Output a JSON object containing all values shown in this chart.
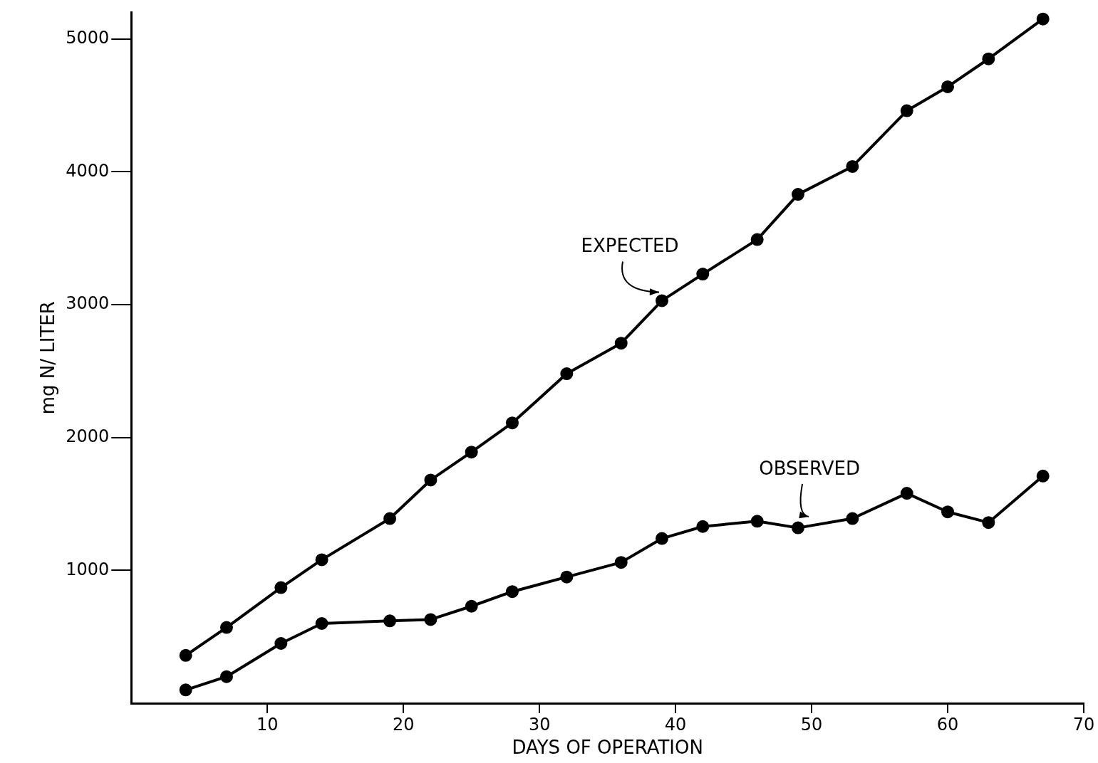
{
  "chart_data": {
    "type": "line",
    "xlabel": "DAYS OF OPERATION",
    "ylabel": "mg N/ LITER",
    "xlim": [
      0,
      70
    ],
    "ylim": [
      0,
      5200
    ],
    "xticks": [
      10,
      20,
      30,
      40,
      50,
      60,
      70
    ],
    "yticks": [
      1000,
      2000,
      3000,
      4000,
      5000
    ],
    "grid": false,
    "legend": false,
    "marker": "circle",
    "line_style": "solid",
    "series": [
      {
        "color": "#000000",
        "x": [
          4,
          7,
          11,
          14,
          19,
          22,
          25,
          28,
          32,
          36,
          39,
          42,
          46,
          49,
          53,
          57,
          60,
          63,
          67
        ],
        "values": [
          360,
          570,
          870,
          1080,
          1390,
          1680,
          1890,
          2110,
          2480,
          2710,
          3030,
          3230,
          3490,
          3830,
          4040,
          4460,
          4640,
          4850,
          5150
        ]
      },
      {
        "color": "#000000",
        "x": [
          4,
          7,
          11,
          14,
          19,
          22,
          25,
          28,
          32,
          36,
          39,
          42,
          46,
          49,
          53,
          57,
          60,
          63,
          67
        ],
        "values": [
          100,
          200,
          450,
          600,
          620,
          630,
          730,
          840,
          950,
          1060,
          1240,
          1330,
          1370,
          1320,
          1390,
          1580,
          1440,
          1360,
          1710
        ]
      }
    ],
    "annotations": [
      {
        "text": "EXPECTED",
        "x": 39,
        "y": 3030
      },
      {
        "text": "OBSERVED",
        "x": 50,
        "y": 1340
      }
    ]
  }
}
